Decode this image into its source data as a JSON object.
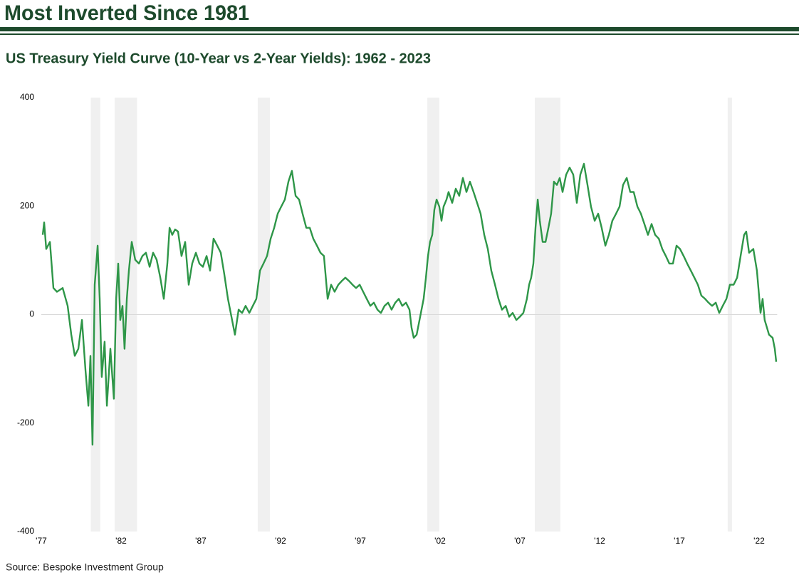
{
  "header": {
    "title": "Most Inverted Since 1981"
  },
  "chart_data": {
    "type": "line",
    "title": "US Treasury Yield Curve (10-Year vs 2-Year Yields): 1962 - 2023",
    "source": "Source: Bespoke Investment Group",
    "x": [
      1977.09,
      1977.18,
      1977.31,
      1977.54,
      1977.76,
      1977.98,
      1978.34,
      1978.65,
      1978.88,
      1979.1,
      1979.32,
      1979.55,
      1979.77,
      1979.95,
      1980.08,
      1980.21,
      1980.35,
      1980.53,
      1980.66,
      1980.79,
      1980.97,
      1981.11,
      1981.33,
      1981.55,
      1981.69,
      1981.82,
      1981.95,
      1982.09,
      1982.22,
      1982.36,
      1982.49,
      1982.67,
      1982.89,
      1983.12,
      1983.34,
      1983.56,
      1983.79,
      1984.01,
      1984.23,
      1984.46,
      1984.68,
      1984.9,
      1985.04,
      1985.21,
      1985.39,
      1985.57,
      1985.79,
      1986.02,
      1986.24,
      1986.46,
      1986.69,
      1986.91,
      1987.13,
      1987.36,
      1987.58,
      1987.8,
      1988.03,
      1988.25,
      1988.47,
      1988.7,
      1988.92,
      1989.14,
      1989.37,
      1989.59,
      1989.81,
      1990.04,
      1990.26,
      1990.48,
      1990.71,
      1990.93,
      1991.15,
      1991.38,
      1991.6,
      1991.82,
      1992.04,
      1992.27,
      1992.49,
      1992.71,
      1992.94,
      1993.16,
      1993.38,
      1993.61,
      1993.83,
      1994.05,
      1994.28,
      1994.5,
      1994.72,
      1994.95,
      1995.17,
      1995.39,
      1995.62,
      1995.84,
      1996.06,
      1996.29,
      1996.51,
      1996.73,
      1996.96,
      1997.18,
      1997.4,
      1997.63,
      1997.85,
      1998.07,
      1998.29,
      1998.52,
      1998.74,
      1998.96,
      1999.19,
      1999.41,
      1999.63,
      1999.86,
      2000.08,
      2000.21,
      2000.35,
      2000.53,
      2000.75,
      2000.97,
      2001.11,
      2001.24,
      2001.37,
      2001.51,
      2001.64,
      2001.78,
      2001.95,
      2002.09,
      2002.22,
      2002.4,
      2002.53,
      2002.76,
      2002.98,
      2003.2,
      2003.43,
      2003.65,
      2003.87,
      2004.1,
      2004.32,
      2004.54,
      2004.77,
      2004.99,
      2005.21,
      2005.44,
      2005.66,
      2005.88,
      2006.11,
      2006.33,
      2006.55,
      2006.78,
      2007.0,
      2007.22,
      2007.44,
      2007.58,
      2007.71,
      2007.85,
      2007.98,
      2008.12,
      2008.25,
      2008.43,
      2008.61,
      2008.79,
      2008.96,
      2009.14,
      2009.32,
      2009.5,
      2009.68,
      2009.9,
      2010.12,
      2010.35,
      2010.57,
      2010.79,
      2011.02,
      2011.24,
      2011.46,
      2011.69,
      2011.91,
      2012.13,
      2012.36,
      2012.58,
      2012.8,
      2013.03,
      2013.25,
      2013.47,
      2013.7,
      2013.92,
      2014.14,
      2014.37,
      2014.59,
      2014.81,
      2015.03,
      2015.26,
      2015.48,
      2015.71,
      2015.93,
      2016.15,
      2016.37,
      2016.6,
      2016.82,
      2017.04,
      2017.27,
      2017.49,
      2017.72,
      2017.94,
      2018.16,
      2018.38,
      2018.61,
      2018.83,
      2019.05,
      2019.28,
      2019.5,
      2019.72,
      2019.95,
      2020.17,
      2020.4,
      2020.62,
      2020.84,
      2021.06,
      2021.19,
      2021.37,
      2021.64,
      2021.86,
      2022.09,
      2022.22,
      2022.35,
      2022.49,
      2022.62,
      2022.85,
      2022.98,
      2023.07
    ],
    "series": [
      {
        "color": "#2e9648",
        "values": [
          147,
          170,
          121,
          134,
          49,
          42,
          49,
          16,
          -37,
          -76,
          -63,
          -10,
          -102,
          -168,
          -76,
          -240,
          55,
          127,
          29,
          -115,
          -50,
          -168,
          -63,
          -155,
          29,
          94,
          -10,
          16,
          -63,
          29,
          81,
          134,
          101,
          94,
          108,
          114,
          88,
          114,
          101,
          68,
          29,
          94,
          160,
          147,
          157,
          153,
          108,
          134,
          55,
          94,
          114,
          94,
          88,
          108,
          81,
          140,
          127,
          114,
          75,
          29,
          -4,
          -37,
          9,
          3,
          16,
          3,
          16,
          29,
          81,
          94,
          108,
          140,
          160,
          186,
          199,
          212,
          245,
          265,
          219,
          212,
          186,
          160,
          160,
          140,
          127,
          114,
          108,
          29,
          55,
          42,
          55,
          62,
          68,
          62,
          55,
          49,
          55,
          42,
          29,
          16,
          22,
          9,
          3,
          16,
          22,
          9,
          22,
          29,
          16,
          22,
          9,
          -24,
          -43,
          -37,
          -4,
          29,
          68,
          108,
          134,
          147,
          193,
          212,
          199,
          173,
          199,
          212,
          226,
          206,
          232,
          219,
          252,
          226,
          245,
          226,
          206,
          186,
          147,
          121,
          81,
          55,
          29,
          9,
          16,
          -4,
          3,
          -10,
          -4,
          3,
          29,
          55,
          68,
          94,
          160,
          212,
          173,
          134,
          134,
          160,
          186,
          245,
          239,
          252,
          226,
          258,
          271,
          258,
          206,
          258,
          278,
          239,
          199,
          173,
          186,
          160,
          127,
          147,
          173,
          186,
          199,
          239,
          252,
          226,
          226,
          199,
          186,
          167,
          147,
          167,
          147,
          140,
          121,
          108,
          94,
          94,
          127,
          121,
          108,
          94,
          81,
          68,
          55,
          35,
          29,
          22,
          16,
          22,
          3,
          16,
          29,
          55,
          55,
          68,
          108,
          147,
          153,
          114,
          121,
          81,
          3,
          29,
          -10,
          -24,
          -37,
          -43,
          -63,
          -87
        ]
      }
    ],
    "shaded_periods": [
      {
        "start": 1980.1,
        "end": 1980.7
      },
      {
        "start": 1981.6,
        "end": 1983.0
      },
      {
        "start": 1990.57,
        "end": 1991.33
      },
      {
        "start": 2001.2,
        "end": 2001.95
      },
      {
        "start": 2007.94,
        "end": 2009.54
      },
      {
        "start": 2020.03,
        "end": 2020.3
      }
    ],
    "shade_color": "#f0f0f0",
    "xlim": [
      1977,
      2023.4
    ],
    "xticks": [
      {
        "value": 1977,
        "label": "'77"
      },
      {
        "value": 1982,
        "label": "'82"
      },
      {
        "value": 1987,
        "label": "'87"
      },
      {
        "value": 1992,
        "label": "'92"
      },
      {
        "value": 1997,
        "label": "'97"
      },
      {
        "value": 2002,
        "label": "'02"
      },
      {
        "value": 2007,
        "label": "'07"
      },
      {
        "value": 2012,
        "label": "'12"
      },
      {
        "value": 2017,
        "label": "'17"
      },
      {
        "value": 2022,
        "label": "'22"
      }
    ],
    "ylim": [
      -400,
      400
    ],
    "yticks": [
      -400,
      -200,
      0,
      200,
      400
    ]
  }
}
